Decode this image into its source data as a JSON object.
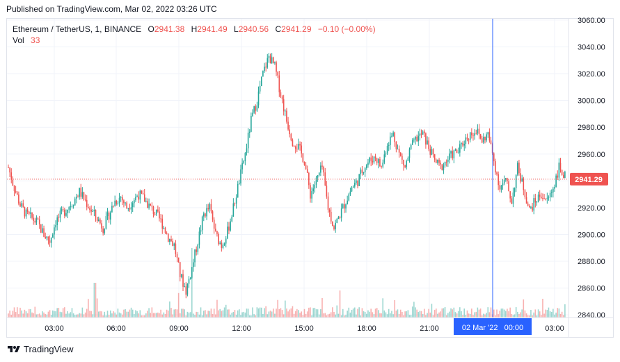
{
  "header": {
    "published": "Published on TradingView.com, Mar 02, 2022 03:26 UTC"
  },
  "legend": {
    "symbol": "Ethereum / TetherUS, 1, BINANCE",
    "o_label": "O",
    "o_value": "2941.38",
    "h_label": "H",
    "h_value": "2941.49",
    "l_label": "L",
    "l_value": "2940.56",
    "c_label": "C",
    "c_value": "2941.29",
    "change": "−0.10 (−0.00%)",
    "vol_label": "Vol",
    "vol_value": "33"
  },
  "footer": {
    "brand": "TradingView",
    "logo_icon": "tradingview-logo-icon"
  },
  "colors": {
    "up": "#26a69a",
    "down": "#ef5350",
    "crosshair": "#2962ff",
    "grid": "#f0f3fa",
    "price_line": "#ef5350"
  },
  "chart_data": {
    "type": "candlestick",
    "y_ticks": [
      "2840.00",
      "2860.00",
      "2880.00",
      "2900.00",
      "2920.00",
      "2940.00",
      "2960.00",
      "2980.00",
      "3000.00",
      "3020.00",
      "3040.00",
      "3060.00"
    ],
    "ylim": [
      2838,
      3061
    ],
    "x_ticks": [
      "03:00",
      "06:00",
      "09:00",
      "12:00",
      "15:00",
      "18:00",
      "21:00",
      "03:00"
    ],
    "crosshair_label": "02 Mar '22   00:00",
    "last_price_label": "2941.29",
    "last_price": 2941.29,
    "close_path": [
      [
        0,
        2950
      ],
      [
        2,
        2935
      ],
      [
        4,
        2922
      ],
      [
        6,
        2915
      ],
      [
        8,
        2912
      ],
      [
        10,
        2908
      ],
      [
        12,
        2900
      ],
      [
        14,
        2895
      ],
      [
        16,
        2910
      ],
      [
        18,
        2915
      ],
      [
        20,
        2920
      ],
      [
        22,
        2925
      ],
      [
        24,
        2932
      ],
      [
        26,
        2925
      ],
      [
        28,
        2918
      ],
      [
        30,
        2912
      ],
      [
        32,
        2905
      ],
      [
        34,
        2915
      ],
      [
        36,
        2925
      ],
      [
        38,
        2928
      ],
      [
        40,
        2920
      ],
      [
        42,
        2925
      ],
      [
        44,
        2930
      ],
      [
        46,
        2926
      ],
      [
        48,
        2920
      ],
      [
        50,
        2915
      ],
      [
        52,
        2908
      ],
      [
        54,
        2898
      ],
      [
        56,
        2892
      ],
      [
        58,
        2870
      ],
      [
        59,
        2858
      ],
      [
        60,
        2875
      ],
      [
        62,
        2895
      ],
      [
        64,
        2915
      ],
      [
        66,
        2920
      ],
      [
        68,
        2900
      ],
      [
        70,
        2892
      ],
      [
        72,
        2902
      ],
      [
        74,
        2920
      ],
      [
        76,
        2940
      ],
      [
        78,
        2960
      ],
      [
        80,
        2985
      ],
      [
        82,
        3000
      ],
      [
        84,
        3020
      ],
      [
        86,
        3033
      ],
      [
        88,
        3025
      ],
      [
        90,
        3005
      ],
      [
        92,
        2985
      ],
      [
        94,
        2970
      ],
      [
        96,
        2965
      ],
      [
        98,
        2955
      ],
      [
        100,
        2930
      ],
      [
        102,
        2940
      ],
      [
        104,
        2950
      ],
      [
        106,
        2920
      ],
      [
        108,
        2905
      ],
      [
        110,
        2915
      ],
      [
        112,
        2925
      ],
      [
        114,
        2935
      ],
      [
        116,
        2940
      ],
      [
        118,
        2950
      ],
      [
        120,
        2955
      ],
      [
        122,
        2958
      ],
      [
        124,
        2950
      ],
      [
        126,
        2968
      ],
      [
        128,
        2975
      ],
      [
        130,
        2960
      ],
      [
        132,
        2950
      ],
      [
        134,
        2965
      ],
      [
        136,
        2972
      ],
      [
        138,
        2975
      ],
      [
        140,
        2965
      ],
      [
        142,
        2955
      ],
      [
        144,
        2950
      ],
      [
        146,
        2955
      ],
      [
        148,
        2960
      ],
      [
        150,
        2962
      ],
      [
        152,
        2970
      ],
      [
        154,
        2975
      ],
      [
        156,
        2978
      ],
      [
        158,
        2970
      ],
      [
        160,
        2975
      ],
      [
        162,
        2955
      ],
      [
        164,
        2935
      ],
      [
        166,
        2940
      ],
      [
        168,
        2925
      ],
      [
        170,
        2950
      ],
      [
        172,
        2935
      ],
      [
        174,
        2918
      ],
      [
        176,
        2925
      ],
      [
        178,
        2930
      ],
      [
        180,
        2925
      ],
      [
        182,
        2935
      ],
      [
        184,
        2950
      ],
      [
        186,
        2943
      ]
    ],
    "volume_label": "Vol 33"
  }
}
